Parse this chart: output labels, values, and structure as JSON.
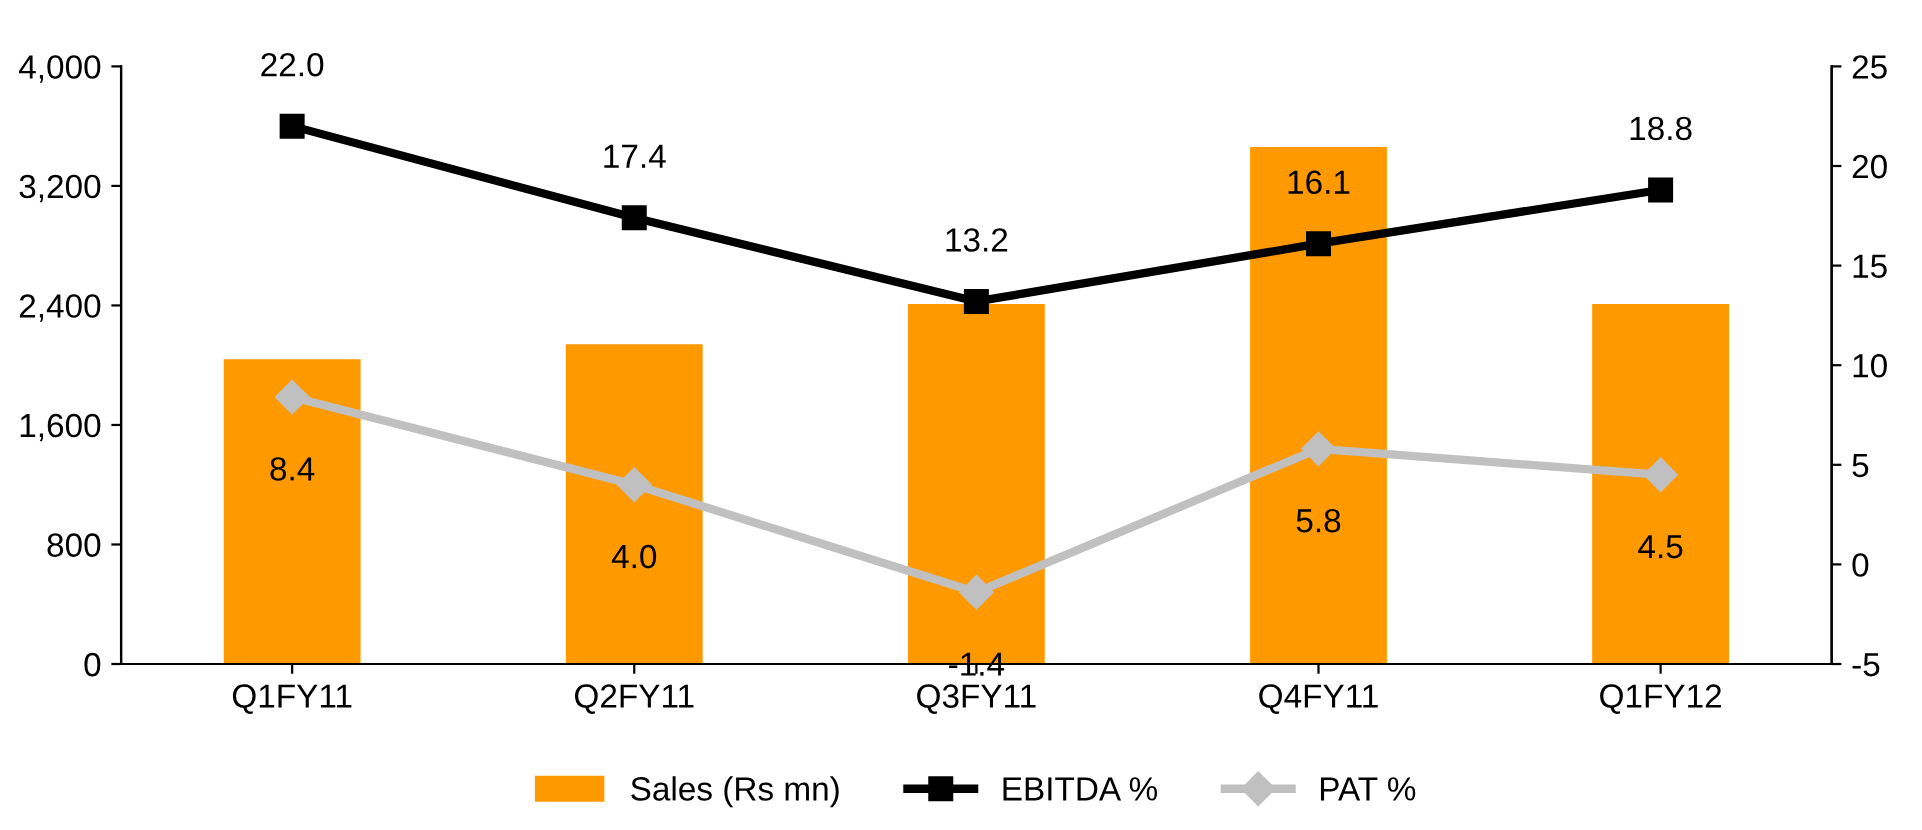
{
  "chart_data": {
    "type": "bar",
    "categories": [
      "Q1FY11",
      "Q2FY11",
      "Q3FY11",
      "Q4FY11",
      "Q1FY12"
    ],
    "series": [
      {
        "name": "Sales (Rs mn)",
        "color": "#ff9900",
        "values": [
          2040,
          2140,
          2410,
          3460,
          2410
        ]
      },
      {
        "name": "EBITDA %",
        "type": "line",
        "axis": "y2",
        "color": "#000000",
        "marker": "square",
        "values": [
          22.0,
          17.4,
          13.2,
          16.1,
          18.8
        ],
        "value_labels": [
          "22.0",
          "17.4",
          "13.2",
          "16.1",
          "18.8"
        ]
      },
      {
        "name": "PAT %",
        "type": "line",
        "axis": "y2",
        "color": "#c0c0c0",
        "marker": "diamond",
        "values": [
          8.4,
          4.0,
          -1.4,
          5.8,
          4.5
        ],
        "value_labels": [
          "8.4",
          "4.0",
          "-1.4",
          "5.8",
          "4.5"
        ]
      }
    ],
    "ylim": [
      0,
      4000
    ],
    "yticks": [
      {
        "value": 0,
        "label": "0"
      },
      {
        "value": 800,
        "label": "800"
      },
      {
        "value": 1600,
        "label": "1,600"
      },
      {
        "value": 2400,
        "label": "2,400"
      },
      {
        "value": 3200,
        "label": "3,200"
      },
      {
        "value": 4000,
        "label": "4,000"
      }
    ],
    "y2lim": [
      -5,
      25
    ],
    "y2ticks": [
      -5,
      0,
      5,
      10,
      15,
      20,
      25
    ],
    "legend": "bottom",
    "grid": false
  }
}
